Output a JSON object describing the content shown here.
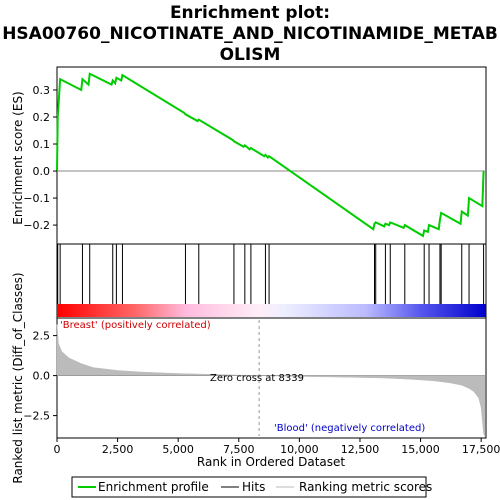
{
  "chart_data": {
    "type": "line",
    "title_line1": "Enrichment plot:",
    "title_line2": "HSA00760_NICOTINATE_AND_NICOTINAMIDE_METAB",
    "title_line3": "OLISM",
    "top_ylabel": "Enrichment score (ES)",
    "bottom_ylabel": "Ranked list metric (Diff_of_Classes)",
    "xlabel": "Rank in Ordered Dataset",
    "xlim": [
      0,
      17700
    ],
    "top_ylim": [
      -0.27,
      0.385
    ],
    "bottom_ylim": [
      -3.9,
      3.6
    ],
    "x_ticks": [
      0,
      2500,
      5000,
      7500,
      10000,
      12500,
      15000,
      17500
    ],
    "x_tick_labels": [
      "0",
      "2,500",
      "5,000",
      "7,500",
      "10,000",
      "12,500",
      "15,000",
      "17,500"
    ],
    "top_y_ticks": [
      -0.2,
      -0.1,
      0.0,
      0.1,
      0.2,
      0.3
    ],
    "top_y_tick_labels": [
      "−0.2",
      "−0.1",
      "0.0",
      "0.1",
      "0.2",
      "0.3"
    ],
    "bottom_y_ticks": [
      -2.5,
      0.0,
      2.5
    ],
    "bottom_y_tick_labels": [
      "−2.5",
      "0.0",
      "2.5"
    ],
    "pos_class_label": "'Breast' (positively correlated)",
    "neg_class_label": "'Blood' (negatively correlated)",
    "zero_cross_label": "Zero cross at 8339",
    "zero_cross": 8339,
    "legend": [
      "Enrichment profile",
      "Hits",
      "Ranking metric scores"
    ],
    "colors": {
      "profile": "#00cc00",
      "hits": "#000000",
      "metric": "#bbbbbb",
      "pos_class": "#cc0000",
      "neg_class": "#0000cc"
    },
    "hits": [
      30,
      130,
      1050,
      1350,
      2300,
      2450,
      2700,
      5300,
      5850,
      7300,
      7750,
      8000,
      8600,
      8750,
      13100,
      13150,
      13550,
      13750,
      14350,
      15150,
      15350,
      15800,
      15850,
      16700,
      17000,
      17600
    ],
    "es_points": [
      [
        0,
        0.0
      ],
      [
        30,
        0.2
      ],
      [
        130,
        0.34
      ],
      [
        1000,
        0.3
      ],
      [
        1050,
        0.34
      ],
      [
        1300,
        0.32
      ],
      [
        1350,
        0.36
      ],
      [
        2250,
        0.32
      ],
      [
        2300,
        0.335
      ],
      [
        2400,
        0.325
      ],
      [
        2450,
        0.345
      ],
      [
        2650,
        0.335
      ],
      [
        2700,
        0.355
      ],
      [
        5250,
        0.215
      ],
      [
        5300,
        0.21
      ],
      [
        5800,
        0.185
      ],
      [
        5850,
        0.19
      ],
      [
        7250,
        0.115
      ],
      [
        7300,
        0.11
      ],
      [
        7700,
        0.09
      ],
      [
        7750,
        0.095
      ],
      [
        7950,
        0.08
      ],
      [
        8000,
        0.085
      ],
      [
        8550,
        0.055
      ],
      [
        8600,
        0.06
      ],
      [
        8700,
        0.05
      ],
      [
        8750,
        0.055
      ],
      [
        13050,
        -0.215
      ],
      [
        13100,
        -0.195
      ],
      [
        13150,
        -0.19
      ],
      [
        13500,
        -0.205
      ],
      [
        13550,
        -0.195
      ],
      [
        13700,
        -0.2
      ],
      [
        13750,
        -0.19
      ],
      [
        14300,
        -0.21
      ],
      [
        14350,
        -0.2
      ],
      [
        15100,
        -0.24
      ],
      [
        15150,
        -0.22
      ],
      [
        15300,
        -0.225
      ],
      [
        15350,
        -0.2
      ],
      [
        15750,
        -0.215
      ],
      [
        15800,
        -0.18
      ],
      [
        15850,
        -0.155
      ],
      [
        16650,
        -0.195
      ],
      [
        16700,
        -0.15
      ],
      [
        16950,
        -0.165
      ],
      [
        17000,
        -0.1
      ],
      [
        17550,
        -0.13
      ],
      [
        17600,
        0.0
      ]
    ],
    "metric_points": [
      [
        0,
        3.2
      ],
      [
        60,
        2.0
      ],
      [
        200,
        1.5
      ],
      [
        500,
        1.1
      ],
      [
        1000,
        0.75
      ],
      [
        1500,
        0.5
      ],
      [
        2500,
        0.32
      ],
      [
        3500,
        0.22
      ],
      [
        5000,
        0.13
      ],
      [
        6500,
        0.07
      ],
      [
        8339,
        0.0
      ],
      [
        10000,
        -0.05
      ],
      [
        12000,
        -0.1
      ],
      [
        13500,
        -0.15
      ],
      [
        14500,
        -0.22
      ],
      [
        15500,
        -0.32
      ],
      [
        16200,
        -0.45
      ],
      [
        16700,
        -0.6
      ],
      [
        17000,
        -0.8
      ],
      [
        17200,
        -1.0
      ],
      [
        17400,
        -1.4
      ],
      [
        17500,
        -2.0
      ],
      [
        17600,
        -3.6
      ],
      [
        17650,
        -3.8
      ]
    ]
  }
}
